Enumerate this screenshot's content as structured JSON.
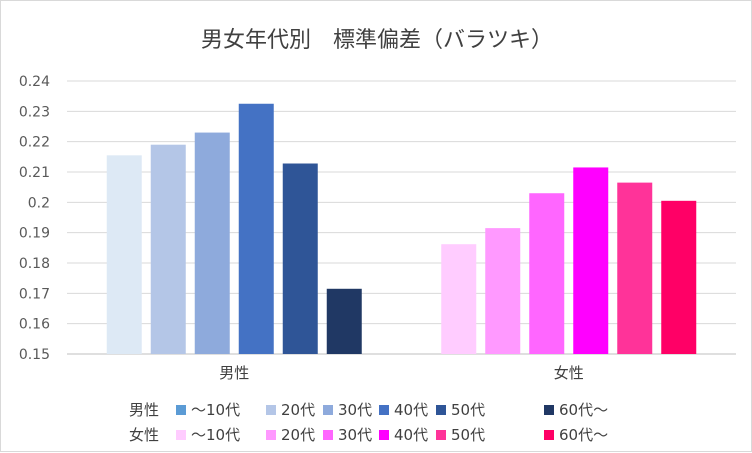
{
  "chart_data": {
    "type": "bar",
    "title": "男女年代別　標準偏差（バラツキ）",
    "categories": [
      "男性",
      "女性"
    ],
    "ylim": [
      0.15,
      0.24
    ],
    "yticks": [
      "0.15",
      "0.16",
      "0.17",
      "0.18",
      "0.19",
      "0.2",
      "0.21",
      "0.22",
      "0.23",
      "0.24"
    ],
    "grid": true,
    "legend_position": "bottom",
    "series_labels": [
      "〜10代",
      "20代",
      "30代",
      "40代",
      "50代",
      "60代〜"
    ],
    "groups": [
      {
        "name": "男性",
        "values": [
          0.2155,
          0.219,
          0.223,
          0.2325,
          0.2128,
          0.1715
        ],
        "colors": [
          "#dde9f5",
          "#b4c6e7",
          "#8eaadc",
          "#4472c4",
          "#2f5597",
          "#203864"
        ],
        "legend_colors": [
          "#5b9bd5",
          "#b4c6e7",
          "#8eaadc",
          "#4472c4",
          "#2f5597",
          "#203864"
        ]
      },
      {
        "name": "女性",
        "values": [
          0.1862,
          0.1915,
          0.203,
          0.2115,
          0.2065,
          0.2005
        ],
        "colors": [
          "#ffccff",
          "#ff99ff",
          "#ff66ff",
          "#ff00ff",
          "#ff3399",
          "#ff0066"
        ],
        "legend_colors": [
          "#ffccff",
          "#ff99ff",
          "#ff66ff",
          "#ff00ff",
          "#ff3399",
          "#ff0066"
        ]
      }
    ]
  }
}
